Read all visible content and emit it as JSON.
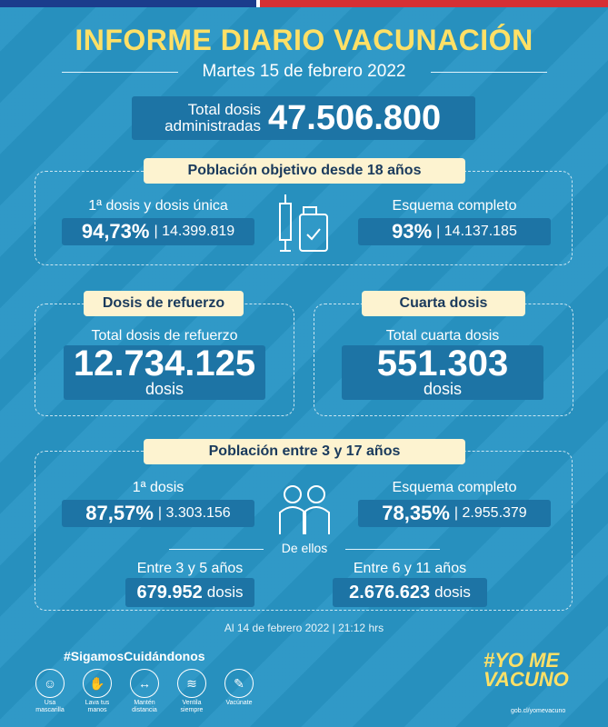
{
  "title": "INFORME DIARIO VACUNACIÓN",
  "date": "Martes 15 de febrero 2022",
  "total": {
    "label_1": "Total dosis",
    "label_2": "administradas",
    "value": "47.506.800"
  },
  "adult": {
    "heading": "Población objetivo desde 18 años",
    "first": {
      "label": "1ª dosis y dosis única",
      "pct": "94,73%",
      "count": "| 14.399.819"
    },
    "complete": {
      "label": "Esquema completo",
      "pct": "93%",
      "count": "| 14.137.185"
    }
  },
  "booster": {
    "heading": "Dosis de refuerzo",
    "label": "Total dosis de refuerzo",
    "value": "12.734.125",
    "unit": "dosis"
  },
  "fourth": {
    "heading": "Cuarta dosis",
    "label": "Total cuarta dosis",
    "value": "551.303",
    "unit": "dosis"
  },
  "kids": {
    "heading": "Población entre 3 y 17 años",
    "first": {
      "label": "1ª dosis",
      "pct": "87,57%",
      "count": "| 3.303.156"
    },
    "complete": {
      "label": "Esquema completo",
      "pct": "78,35%",
      "count": "| 2.955.379"
    },
    "of_them": "De ellos",
    "age_3_5": {
      "label": "Entre 3 y 5 años",
      "value": "679.952",
      "unit": "dosis"
    },
    "age_6_11": {
      "label": "Entre 6 y 11 años",
      "value": "2.676.623",
      "unit": "dosis"
    }
  },
  "note": "Al 14 de febrero 2022 | 21:12 hrs",
  "hashtag": "#SigamosCuidándonos",
  "tips": [
    {
      "icon": "mask-icon",
      "label_1": "Usa",
      "label_2": "mascarilla"
    },
    {
      "icon": "hand-wash-icon",
      "label_1": "Lava tus",
      "label_2": "manos"
    },
    {
      "icon": "distance-icon",
      "label_1": "Mantén",
      "label_2": "distancia"
    },
    {
      "icon": "ventilate-icon",
      "label_1": "Ventila",
      "label_2": "siempre"
    },
    {
      "icon": "vaccine-icon",
      "label_1": "Vacúnate",
      "label_2": ""
    }
  ],
  "logo": {
    "line_1": "#YO ME",
    "line_2": "VACUNO",
    "url": "gob.cl/yomevacuno"
  }
}
